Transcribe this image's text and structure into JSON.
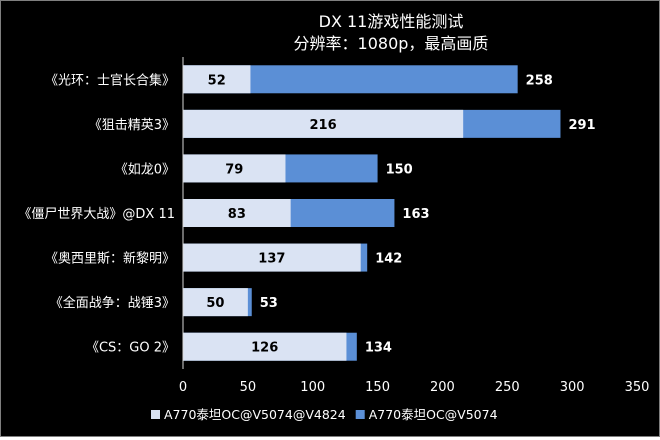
{
  "chart_data": {
    "type": "bar",
    "orientation": "horizontal",
    "stacking": "overlay",
    "title": "DX 11游戏性能测试",
    "subtitle": "分辨率：1080p，最高画质",
    "categories": [
      "《光环：士官长合集》",
      "《狙击精英3》",
      "《如龙0》",
      "《僵尸世界大战》@DX 11",
      "《奥西里斯：新黎明》",
      "《全面战争：战锤3》",
      "《CS：GO 2》"
    ],
    "series": [
      {
        "name": "A770泰坦OC@V5074@V4824",
        "color": "#dae3f3",
        "values": [
          52,
          216,
          79,
          83,
          137,
          50,
          126
        ]
      },
      {
        "name": "A770泰坦OC@V5074",
        "color": "#5b8fd6",
        "values": [
          258,
          291,
          150,
          163,
          142,
          53,
          134
        ]
      }
    ],
    "xlim": [
      0,
      350
    ],
    "xticks": [
      0,
      50,
      100,
      150,
      200,
      250,
      300,
      350
    ],
    "grid": false,
    "legend": "bottom",
    "background": "#000000",
    "text_color": "#ffffff"
  }
}
